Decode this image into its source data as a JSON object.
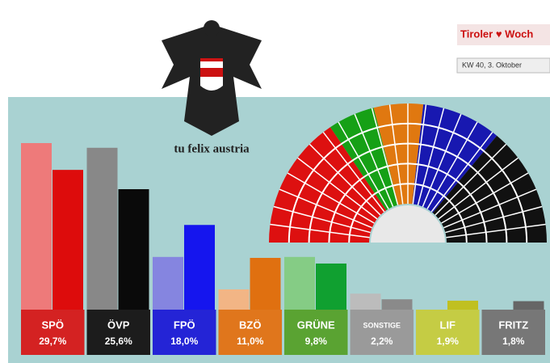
{
  "chart_data": {
    "type": "bar",
    "categories": [
      "SPÖ",
      "ÖVP",
      "FPÖ",
      "BZÖ",
      "GRÜNE",
      "SONSTIGE",
      "LIF",
      "FRITZ"
    ],
    "label_colors": [
      "#d42222",
      "#1c1c1c",
      "#2424d6",
      "#e0761c",
      "#5aa332",
      "#9a9a9a",
      "#c5cc44",
      "#777777"
    ],
    "series": [
      {
        "colors": [
          "#ee7a7a",
          "#888888",
          "#8585e0",
          "#f2b585",
          "#85cc85",
          "#bcbcbc",
          "#bcbcbc",
          "#bcbcbc"
        ],
        "values": [
          35.4,
          34.4,
          11.2,
          4.3,
          11.2,
          3.4,
          null,
          null
        ]
      },
      {
        "colors": [
          "#dd0c0c",
          "#0a0a0a",
          "#1515ee",
          "#e07010",
          "#10a030",
          "#8a8a8a",
          "#c0c020",
          "#666666"
        ],
        "values": [
          29.7,
          25.6,
          18.0,
          11.0,
          9.8,
          2.2,
          1.9,
          1.8
        ],
        "value_labels": [
          "29,7%",
          "25,6%",
          "18,0%",
          "11,0%",
          "9,8%",
          "2,2%",
          "1,9%",
          "1,8%"
        ]
      }
    ],
    "seats": {
      "parties": [
        "SPÖ",
        "GRÜNE",
        "BZÖ",
        "FPÖ",
        "ÖVP"
      ],
      "colors": [
        "#dd1010",
        "#16a016",
        "#e07810",
        "#1818b0",
        "#111111"
      ],
      "values": [
        57,
        20,
        21,
        34,
        51
      ]
    },
    "motto": "tu felix austria",
    "newspaper": "Tiroler ♥ Woch",
    "issue": "KW 40, 3. Oktober"
  }
}
